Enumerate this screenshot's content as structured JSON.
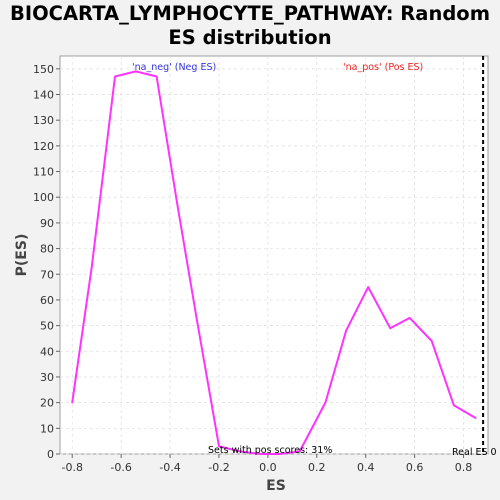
{
  "chart_data": {
    "type": "line",
    "title_line1": "BIOCARTA_LYMPHOCYTE_PATHWAY: Random",
    "title_line2": "ES distribution",
    "xlabel": "ES",
    "ylabel": "P(ES)",
    "xlim": [
      -0.85,
      0.9
    ],
    "ylim": [
      0,
      155
    ],
    "xticks": [
      "-0.8",
      "-0.6",
      "-0.4",
      "-0.2",
      "0.0",
      "0.2",
      "0.4",
      "0.6",
      "0.8"
    ],
    "yticks": [
      "0",
      "10",
      "20",
      "30",
      "40",
      "50",
      "60",
      "70",
      "80",
      "90",
      "100",
      "110",
      "120",
      "130",
      "140",
      "150"
    ],
    "grid": true,
    "series": [
      {
        "color": "#ff33ff",
        "x": [
          -0.8,
          -0.72,
          -0.625,
          -0.54,
          -0.455,
          -0.37,
          -0.29,
          -0.2,
          -0.115,
          -0.03,
          0.05,
          0.13,
          0.235,
          0.32,
          0.41,
          0.5,
          0.58,
          0.67,
          0.76,
          0.85
        ],
        "y": [
          20,
          73,
          147,
          149,
          147,
          97,
          52,
          3,
          1,
          0,
          0,
          1,
          20,
          48,
          65,
          49,
          53,
          44,
          19,
          14
        ]
      }
    ],
    "real_es": {
      "x": 0.88,
      "label": "Real ES 0",
      "color": "#000000"
    },
    "annotations": {
      "neg": {
        "text": "'na_neg' (Neg ES)",
        "color": "#3333dd"
      },
      "pos": {
        "text": "'na_pos' (Pos ES)",
        "color": "#ee2222"
      },
      "pos_scores": {
        "text": "Sets with pos scores: 31%",
        "color": "#000000"
      }
    }
  }
}
